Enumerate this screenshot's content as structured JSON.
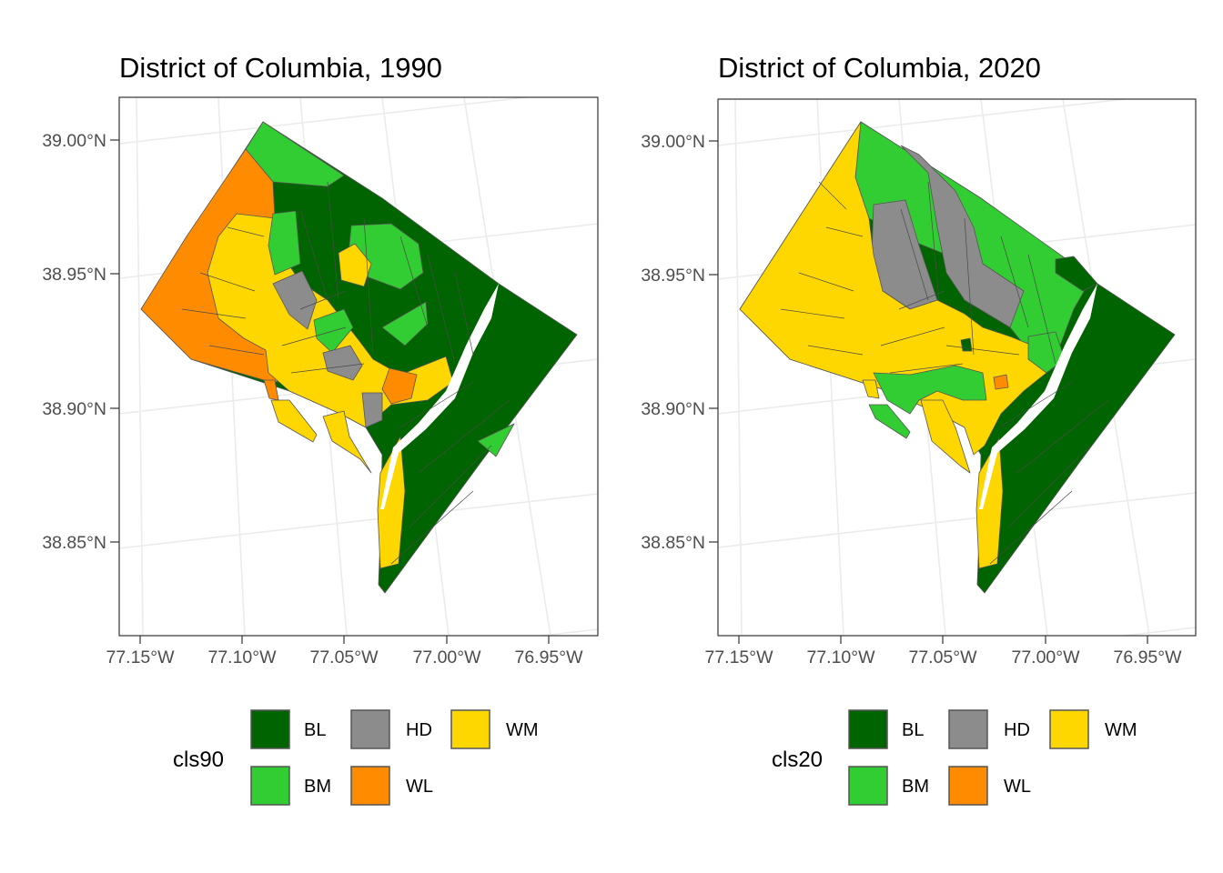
{
  "chart_data": [
    {
      "type": "choropleth map",
      "title": "District of Columbia, 1990",
      "legend": {
        "title": "cls90",
        "position": "bottom",
        "entries": [
          {
            "key": "BL",
            "label": "BL",
            "color": "#006400"
          },
          {
            "key": "HD",
            "label": "HD",
            "color": "#8C8C8C"
          },
          {
            "key": "WM",
            "label": "WM",
            "color": "#FFD700"
          },
          {
            "key": "BM",
            "label": "BM",
            "color": "#32CD32"
          },
          {
            "key": "WL",
            "label": "WL",
            "color": "#FF8C00"
          }
        ]
      },
      "y_ticks": [
        {
          "value": 39.0,
          "label": "39.00°N"
        },
        {
          "value": 38.95,
          "label": "38.95°N"
        },
        {
          "value": 38.9,
          "label": "38.90°N"
        },
        {
          "value": 38.85,
          "label": "38.85°N"
        }
      ],
      "x_ticks": [
        {
          "value": -77.15,
          "label": "77.15°W"
        },
        {
          "value": -77.1,
          "label": "77.10°W"
        },
        {
          "value": -77.05,
          "label": "77.05°W"
        },
        {
          "value": -77.0,
          "label": "77.00°W"
        },
        {
          "value": -76.95,
          "label": "76.95°W"
        }
      ],
      "grid": true,
      "regions": [
        {
          "class": "WL",
          "area": "far northwest (Palisades / upper Northwest)"
        },
        {
          "class": "WM",
          "area": "west-central (Georgetown to Cleveland Park)"
        },
        {
          "class": "BL",
          "area": "north-central and all areas east of the Anacostia River"
        },
        {
          "class": "BM",
          "area": "northern tip and scattered central tracts"
        },
        {
          "class": "HD",
          "area": "small central strip near Dupont / Capitol area"
        }
      ]
    },
    {
      "type": "choropleth map",
      "title": "District of Columbia, 2020",
      "legend": {
        "title": "cls20",
        "position": "bottom",
        "entries": [
          {
            "key": "BL",
            "label": "BL",
            "color": "#006400"
          },
          {
            "key": "HD",
            "label": "HD",
            "color": "#8C8C8C"
          },
          {
            "key": "WM",
            "label": "WM",
            "color": "#FFD700"
          },
          {
            "key": "BM",
            "label": "BM",
            "color": "#32CD32"
          },
          {
            "key": "WL",
            "label": "WL",
            "color": "#FF8C00"
          }
        ]
      },
      "y_ticks": [
        {
          "value": 39.0,
          "label": "39.00°N"
        },
        {
          "value": 38.95,
          "label": "38.95°N"
        },
        {
          "value": 38.9,
          "label": "38.90°N"
        },
        {
          "value": 38.85,
          "label": "38.85°N"
        }
      ],
      "x_ticks": [
        {
          "value": -77.15,
          "label": "77.15°W"
        },
        {
          "value": -77.1,
          "label": "77.10°W"
        },
        {
          "value": -77.05,
          "label": "77.05°W"
        },
        {
          "value": -77.0,
          "label": "77.00°W"
        },
        {
          "value": -76.95,
          "label": "76.95°W"
        }
      ],
      "grid": true,
      "regions": [
        {
          "class": "WM",
          "area": "entire west and central city"
        },
        {
          "class": "HD",
          "area": "north-central band (Columbia Heights / Petworth)"
        },
        {
          "class": "BM",
          "area": "northeast and southwest waterfront"
        },
        {
          "class": "BL",
          "area": "east of the Anacostia River and a small northeast patch"
        },
        {
          "class": "WL",
          "area": "one tract near Capitol Hill"
        }
      ]
    }
  ]
}
